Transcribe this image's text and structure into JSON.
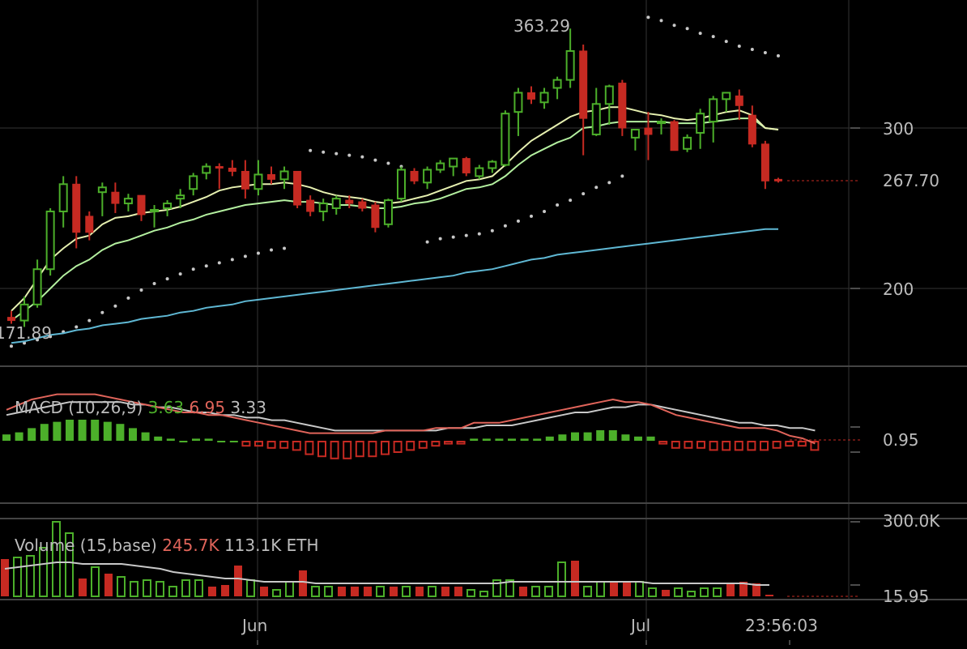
{
  "chart_data": {
    "type": "candlestick",
    "price_panel": {
      "y_ticks": [
        "300",
        "200"
      ],
      "last_price_label": "267.70",
      "high_label": "363.29",
      "low_label": "171.89",
      "ylim": [
        150,
        380
      ]
    },
    "macd_panel": {
      "label": "MACD (10,26,9)",
      "values": [
        "3.63",
        "6.95",
        "3.33"
      ],
      "axis_label": "0.95"
    },
    "volume_panel": {
      "label": "Volume (15,base)",
      "values": [
        "245.7K",
        "113.1K ETH"
      ],
      "axis_labels": [
        "300.0K",
        "15.95"
      ]
    },
    "x_labels": [
      "Jun",
      "Jul"
    ],
    "time_label": "23:56:03",
    "colors": {
      "up": "#4caf2a",
      "down": "#c62a22",
      "ema_fast": "#e6f0b0",
      "ema_mid": "#b4f0a0",
      "ema_slow": "#5fb8d4",
      "sar": "#c8c8c8",
      "grid": "#3a3a3a",
      "text": "#bdbdbd"
    },
    "candles": [
      [
        182,
        186,
        178,
        180
      ],
      [
        180,
        195,
        176,
        190
      ],
      [
        190,
        218,
        188,
        212
      ],
      [
        212,
        250,
        208,
        248
      ],
      [
        248,
        270,
        238,
        265
      ],
      [
        265,
        270,
        225,
        235
      ],
      [
        245,
        248,
        230,
        235
      ],
      [
        260,
        266,
        245,
        263
      ],
      [
        260,
        266,
        247,
        253
      ],
      [
        253,
        259,
        248,
        256
      ],
      [
        258,
        258,
        242,
        246
      ],
      [
        248,
        252,
        238,
        249
      ],
      [
        250,
        255,
        245,
        253
      ],
      [
        256,
        262,
        250,
        258
      ],
      [
        262,
        272,
        258,
        270
      ],
      [
        272,
        278,
        268,
        276
      ],
      [
        276,
        278,
        262,
        275
      ],
      [
        275,
        280,
        270,
        273
      ],
      [
        273,
        280,
        256,
        262
      ],
      [
        262,
        280,
        258,
        271
      ],
      [
        271,
        276,
        265,
        268
      ],
      [
        268,
        276,
        262,
        273
      ],
      [
        273,
        273,
        250,
        252
      ],
      [
        255,
        258,
        245,
        248
      ],
      [
        248,
        256,
        242,
        253
      ],
      [
        250,
        258,
        246,
        256
      ],
      [
        255,
        258,
        250,
        253
      ],
      [
        254,
        256,
        248,
        250
      ],
      [
        252,
        254,
        235,
        238
      ],
      [
        240,
        256,
        238,
        255
      ],
      [
        256,
        276,
        254,
        274
      ],
      [
        273,
        275,
        265,
        267
      ],
      [
        266,
        276,
        262,
        274
      ],
      [
        274,
        280,
        272,
        278
      ],
      [
        276,
        280,
        270,
        281
      ],
      [
        281,
        282,
        270,
        272
      ],
      [
        270,
        277,
        268,
        275
      ],
      [
        275,
        280,
        272,
        279
      ],
      [
        277,
        311,
        276,
        309
      ],
      [
        310,
        325,
        295,
        322
      ],
      [
        322,
        326,
        315,
        318
      ],
      [
        316,
        325,
        312,
        322
      ],
      [
        325,
        332,
        318,
        330
      ],
      [
        330,
        362,
        325,
        348
      ],
      [
        348,
        352,
        283,
        306
      ],
      [
        296,
        325,
        295,
        315
      ],
      [
        315,
        327,
        302,
        326
      ],
      [
        328,
        330,
        295,
        300
      ],
      [
        294,
        298,
        286,
        299
      ],
      [
        300,
        310,
        280,
        296
      ],
      [
        304,
        306,
        296,
        304
      ],
      [
        304,
        305,
        286,
        286
      ],
      [
        287,
        296,
        285,
        294
      ],
      [
        297,
        312,
        287,
        309
      ],
      [
        304,
        320,
        291,
        318
      ],
      [
        318,
        322,
        310,
        322
      ],
      [
        320,
        324,
        305,
        314
      ],
      [
        308,
        314,
        288,
        290
      ],
      [
        290,
        292,
        262,
        267
      ],
      [
        268,
        269,
        266,
        267
      ]
    ],
    "ema_fast": [
      186,
      194,
      206,
      218,
      225,
      231,
      233,
      240,
      244,
      245,
      247,
      248,
      249,
      251,
      254,
      257,
      261,
      263,
      264,
      265,
      265,
      266,
      265,
      263,
      260,
      258,
      257,
      256,
      254,
      253,
      254,
      256,
      258,
      261,
      264,
      267,
      268,
      270,
      277,
      285,
      292,
      297,
      302,
      307,
      310,
      311,
      313,
      313,
      311,
      309,
      308,
      306,
      305,
      306,
      308,
      310,
      311,
      308,
      300,
      299
    ],
    "ema_mid": [
      180,
      186,
      192,
      200,
      208,
      214,
      218,
      224,
      228,
      230,
      233,
      236,
      238,
      241,
      243,
      246,
      248,
      250,
      252,
      253,
      254,
      255,
      254,
      254,
      253,
      252,
      252,
      251,
      250,
      250,
      251,
      253,
      254,
      256,
      259,
      262,
      263,
      265,
      270,
      277,
      283,
      287,
      291,
      294,
      300,
      301,
      303,
      304,
      304,
      304,
      304,
      303,
      303,
      303,
      304,
      305,
      306,
      306,
      300,
      299
    ],
    "ema_slow": [
      166,
      167,
      169,
      171,
      172,
      174,
      175,
      177,
      178,
      179,
      181,
      182,
      183,
      185,
      186,
      188,
      189,
      190,
      192,
      193,
      194,
      195,
      196,
      197,
      198,
      199,
      200,
      201,
      202,
      203,
      204,
      205,
      206,
      207,
      208,
      210,
      211,
      212,
      214,
      216,
      218,
      219,
      221,
      222,
      223,
      224,
      225,
      226,
      227,
      228,
      229,
      230,
      231,
      232,
      233,
      234,
      235,
      236,
      237,
      237
    ],
    "sar": [
      [
        0,
        164
      ],
      [
        1,
        166
      ],
      [
        2,
        168
      ],
      [
        3,
        170
      ],
      [
        4,
        173
      ],
      [
        5,
        176
      ],
      [
        6,
        180
      ],
      [
        7,
        185
      ],
      [
        8,
        189
      ],
      [
        9,
        194
      ],
      [
        10,
        199
      ],
      [
        11,
        203
      ],
      [
        12,
        206
      ],
      [
        13,
        209
      ],
      [
        14,
        212
      ],
      [
        15,
        214
      ],
      [
        16,
        216
      ],
      [
        17,
        218
      ],
      [
        18,
        220
      ],
      [
        19,
        222
      ],
      [
        20,
        224
      ],
      [
        21,
        225
      ],
      [
        23,
        286
      ],
      [
        24,
        285
      ],
      [
        25,
        284
      ],
      [
        26,
        283
      ],
      [
        27,
        282
      ],
      [
        28,
        280
      ],
      [
        29,
        278
      ],
      [
        30,
        276
      ],
      [
        32,
        229
      ],
      [
        33,
        231
      ],
      [
        34,
        232
      ],
      [
        35,
        233
      ],
      [
        36,
        234
      ],
      [
        37,
        236
      ],
      [
        38,
        239
      ],
      [
        39,
        242
      ],
      [
        40,
        245
      ],
      [
        41,
        248
      ],
      [
        42,
        252
      ],
      [
        43,
        255
      ],
      [
        44,
        259
      ],
      [
        45,
        263
      ],
      [
        46,
        266
      ],
      [
        47,
        270
      ],
      [
        49,
        369
      ],
      [
        50,
        367
      ],
      [
        51,
        364
      ],
      [
        52,
        362
      ],
      [
        53,
        359
      ],
      [
        54,
        357
      ],
      [
        55,
        354
      ],
      [
        56,
        351
      ],
      [
        57,
        349
      ],
      [
        58,
        347
      ],
      [
        59,
        345
      ]
    ],
    "macd_hist": [
      3,
      4,
      6,
      8,
      9,
      10,
      10,
      10,
      9,
      8,
      6,
      4,
      2,
      1,
      0,
      1,
      1,
      0,
      0,
      -2,
      -2,
      -3,
      -3,
      -4,
      -6,
      -7,
      -8,
      -8,
      -7,
      -7,
      -6,
      -5,
      -4,
      -3,
      -2,
      -1,
      -1,
      1,
      1,
      1,
      1,
      1,
      1,
      2,
      3,
      4,
      4,
      5,
      5,
      3,
      2,
      2,
      -1,
      -3,
      -3,
      -3,
      -4,
      -4,
      -4,
      -4,
      -4,
      -3,
      -2,
      -2,
      -4
    ],
    "macd_line": [
      6,
      8,
      10,
      11,
      12,
      12,
      12,
      12,
      11,
      10,
      9,
      8,
      7,
      6,
      5,
      5,
      4,
      4,
      3,
      2,
      1,
      0,
      -1,
      -2,
      -3,
      -3,
      -3,
      -3,
      -3,
      -3,
      -2,
      -2,
      -2,
      -2,
      -1,
      -1,
      -1,
      1,
      1,
      1,
      2,
      3,
      4,
      5,
      6,
      7,
      8,
      9,
      10,
      9,
      9,
      8,
      6,
      4,
      3,
      2,
      1,
      0,
      -1,
      -1,
      -1,
      -2,
      -4,
      -5,
      -7
    ],
    "macd_signal": [
      4,
      5,
      6,
      7,
      8,
      9,
      9,
      9,
      9,
      9,
      8,
      8,
      7,
      7,
      6,
      5,
      5,
      4,
      4,
      3,
      3,
      2,
      2,
      1,
      0,
      -1,
      -2,
      -2,
      -2,
      -2,
      -2,
      -2,
      -2,
      -2,
      -2,
      -1,
      -1,
      -1,
      0,
      0,
      0,
      1,
      2,
      3,
      4,
      5,
      5,
      6,
      7,
      7,
      8,
      8,
      7,
      6,
      5,
      4,
      3,
      2,
      1,
      1,
      0,
      0,
      -1,
      -1,
      -2
    ],
    "volume": [
      [
        46,
        "d"
      ],
      [
        48,
        "u"
      ],
      [
        50,
        "u"
      ],
      [
        60,
        "u"
      ],
      [
        92,
        "u"
      ],
      [
        78,
        "u"
      ],
      [
        22,
        "d"
      ],
      [
        36,
        "u"
      ],
      [
        28,
        "d"
      ],
      [
        24,
        "u"
      ],
      [
        18,
        "u"
      ],
      [
        20,
        "u"
      ],
      [
        18,
        "u"
      ],
      [
        12,
        "u"
      ],
      [
        20,
        "u"
      ],
      [
        20,
        "u"
      ],
      [
        12,
        "d"
      ],
      [
        14,
        "d"
      ],
      [
        38,
        "d"
      ],
      [
        20,
        "u"
      ],
      [
        12,
        "d"
      ],
      [
        8,
        "u"
      ],
      [
        18,
        "u"
      ],
      [
        32,
        "d"
      ],
      [
        12,
        "u"
      ],
      [
        12,
        "u"
      ],
      [
        12,
        "d"
      ],
      [
        12,
        "d"
      ],
      [
        12,
        "d"
      ],
      [
        12,
        "u"
      ],
      [
        12,
        "d"
      ],
      [
        12,
        "u"
      ],
      [
        12,
        "d"
      ],
      [
        12,
        "u"
      ],
      [
        12,
        "d"
      ],
      [
        12,
        "d"
      ],
      [
        8,
        "u"
      ],
      [
        6,
        "u"
      ],
      [
        20,
        "u"
      ],
      [
        20,
        "u"
      ],
      [
        12,
        "d"
      ],
      [
        12,
        "u"
      ],
      [
        12,
        "u"
      ],
      [
        42,
        "u"
      ],
      [
        44,
        "d"
      ],
      [
        12,
        "u"
      ],
      [
        18,
        "u"
      ],
      [
        18,
        "d"
      ],
      [
        18,
        "d"
      ],
      [
        18,
        "u"
      ],
      [
        10,
        "u"
      ],
      [
        8,
        "d"
      ],
      [
        10,
        "u"
      ],
      [
        6,
        "u"
      ],
      [
        10,
        "u"
      ],
      [
        10,
        "u"
      ],
      [
        16,
        "d"
      ],
      [
        18,
        "d"
      ],
      [
        16,
        "d"
      ],
      [
        2,
        "d"
      ]
    ],
    "volume_ma": [
      34,
      36,
      38,
      40,
      42,
      42,
      40,
      40,
      40,
      40,
      38,
      36,
      34,
      30,
      28,
      26,
      24,
      22,
      22,
      20,
      18,
      18,
      18,
      18,
      16,
      16,
      16,
      16,
      16,
      16,
      16,
      16,
      16,
      16,
      16,
      16,
      16,
      16,
      16,
      18,
      18,
      18,
      18,
      18,
      18,
      18,
      18,
      18,
      18,
      18,
      16,
      16,
      16,
      16,
      16,
      16,
      16,
      16,
      14,
      14
    ]
  }
}
